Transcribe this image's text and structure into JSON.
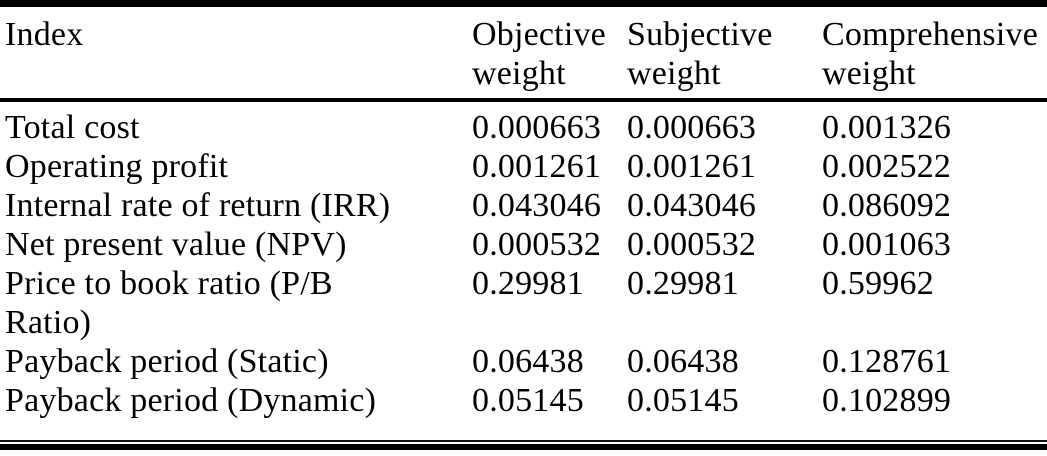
{
  "table": {
    "headers": {
      "index": "Index",
      "objective": "Objective weight",
      "subjective": "Subjective weight",
      "comprehensive": "Comprehensive weight"
    },
    "rows": [
      {
        "index": "Total cost",
        "objective": "0.000663",
        "subjective": "0.000663",
        "comprehensive": "0.001326"
      },
      {
        "index": "Operating profit",
        "objective": "0.001261",
        "subjective": "0.001261",
        "comprehensive": "0.002522"
      },
      {
        "index": "Internal rate of return (IRR)",
        "objective": "0.043046",
        "subjective": "0.043046",
        "comprehensive": "0.086092"
      },
      {
        "index": "Net present value (NPV)",
        "objective": "0.000532",
        "subjective": "0.000532",
        "comprehensive": "0.001063"
      },
      {
        "index": "Price to book ratio (P/B Ratio)",
        "objective": "0.29981",
        "subjective": "0.29981",
        "comprehensive": "0.59962"
      },
      {
        "index": "Payback period (Static)",
        "objective": "0.06438",
        "subjective": "0.06438",
        "comprehensive": "0.128761"
      },
      {
        "index": "Payback period (Dynamic)",
        "objective": "0.05145",
        "subjective": "0.05145",
        "comprehensive": "0.102899"
      }
    ],
    "colors": {
      "text": "#000000",
      "background": "#ffffff",
      "rule": "#000000"
    }
  },
  "chart_data": {
    "type": "table",
    "title": "",
    "columns": [
      "Index",
      "Objective weight",
      "Subjective weight",
      "Comprehensive weight"
    ],
    "rows": [
      [
        "Total cost",
        0.000663,
        0.000663,
        0.001326
      ],
      [
        "Operating profit",
        0.001261,
        0.001261,
        0.002522
      ],
      [
        "Internal rate of return (IRR)",
        0.043046,
        0.043046,
        0.086092
      ],
      [
        "Net present value (NPV)",
        0.000532,
        0.000532,
        0.001063
      ],
      [
        "Price to book ratio (P/B Ratio)",
        0.29981,
        0.29981,
        0.59962
      ],
      [
        "Payback period (Static)",
        0.06438,
        0.06438,
        0.128761
      ],
      [
        "Payback period (Dynamic)",
        0.05145,
        0.05145,
        0.102899
      ]
    ]
  }
}
